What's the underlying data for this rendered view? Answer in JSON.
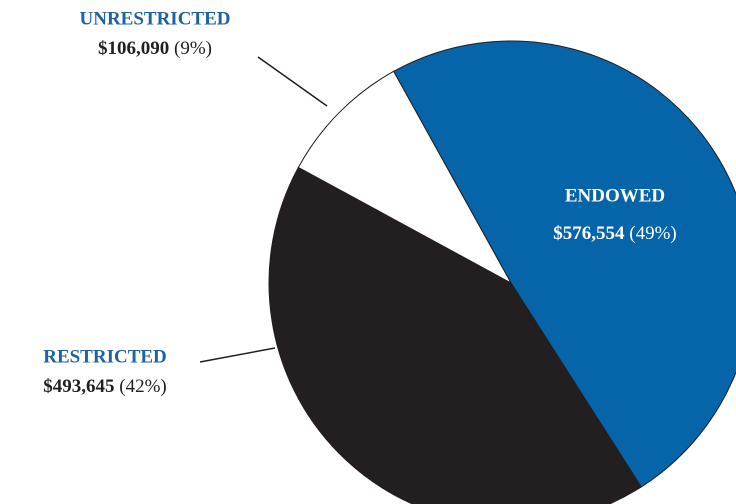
{
  "chart_data": {
    "type": "pie",
    "categories": [
      "ENDOWED",
      "RESTRICTED",
      "UNRESTRICTED"
    ],
    "values": [
      576554,
      493645,
      106090
    ],
    "value_labels": [
      "$576,554",
      "$493,645",
      "$106,090"
    ],
    "percents": [
      49,
      42,
      9
    ],
    "percent_labels": [
      "(49%)",
      "(42%)",
      "(9%)"
    ],
    "colors": [
      "#0565a8",
      "#231f20",
      "#ffffff"
    ]
  }
}
